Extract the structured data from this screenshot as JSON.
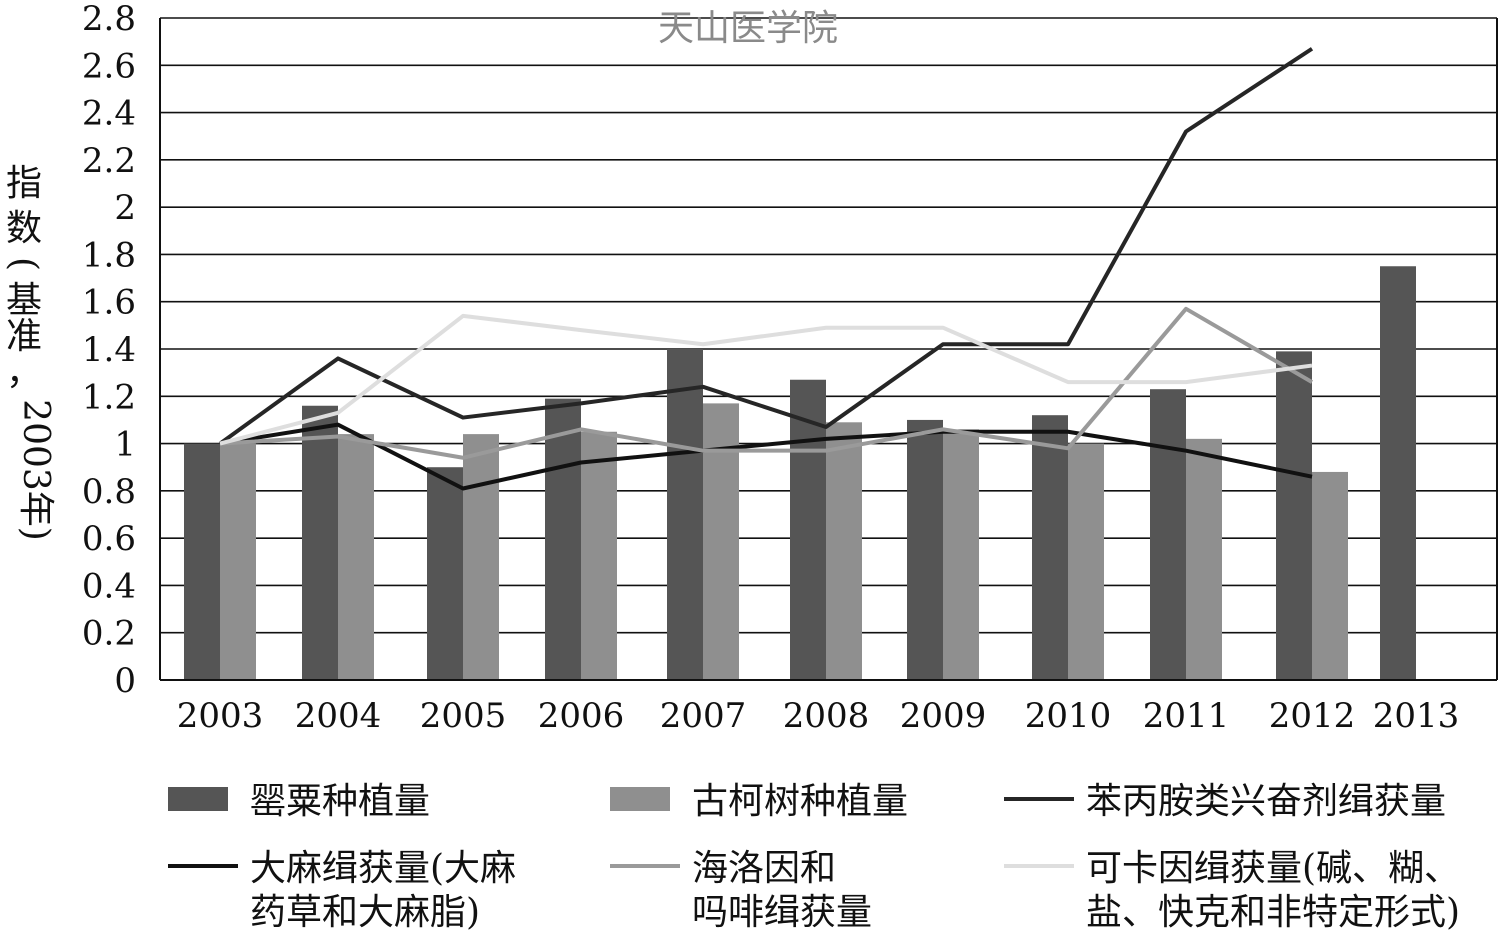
{
  "watermark": "天山医学院",
  "chart_data": {
    "type": "bar",
    "categories": [
      "2003",
      "2004",
      "2005",
      "2006",
      "2007",
      "2008",
      "2009",
      "2010",
      "2011",
      "2012",
      "2013"
    ],
    "ylabel_lines": [
      "指",
      "数(基准，",
      "2003年)"
    ],
    "ylim": [
      0,
      2.8
    ],
    "yticks": [
      "0",
      "0.2",
      "0.4",
      "0.6",
      "0.8",
      "1",
      "1.2",
      "1.4",
      "1.6",
      "1.8",
      "2",
      "2.2",
      "2.4",
      "2.6",
      "2.8"
    ],
    "grid": true,
    "legend_position": "bottom",
    "colors": {
      "poppy": "#555555",
      "coca": "#8f8f8f",
      "amphetamine": "#262626",
      "cannabis": "#111111",
      "heroin": "#9a9a9a",
      "cocaine": "#dedede",
      "grid": "#111111"
    },
    "bar_series": [
      {
        "key": "poppy",
        "values": [
          1.0,
          1.16,
          0.9,
          1.19,
          1.4,
          1.27,
          1.1,
          1.12,
          1.23,
          1.39,
          1.75
        ]
      },
      {
        "key": "coca",
        "values": [
          1.0,
          1.04,
          1.04,
          1.05,
          1.17,
          1.09,
          1.06,
          1.0,
          1.02,
          0.88,
          null
        ]
      }
    ],
    "line_series": [
      {
        "key": "amphetamine",
        "width": 4,
        "values": [
          1.0,
          1.36,
          1.11,
          1.17,
          1.24,
          1.07,
          1.42,
          1.42,
          2.32,
          2.67,
          null
        ]
      },
      {
        "key": "cannabis",
        "width": 4,
        "values": [
          1.0,
          1.08,
          0.81,
          0.92,
          0.97,
          1.02,
          1.05,
          1.05,
          0.97,
          0.86,
          null
        ]
      },
      {
        "key": "heroin",
        "width": 4,
        "values": [
          1.0,
          1.03,
          0.94,
          1.06,
          0.97,
          0.97,
          1.06,
          0.98,
          1.57,
          1.26,
          null
        ]
      },
      {
        "key": "cocaine",
        "width": 4,
        "values": [
          1.0,
          1.13,
          1.54,
          1.48,
          1.42,
          1.49,
          1.49,
          1.26,
          1.26,
          1.33,
          null
        ]
      }
    ],
    "legend": [
      {
        "key": "poppy",
        "kind": "bar",
        "lines": [
          "罂粟种植量"
        ]
      },
      {
        "key": "coca",
        "kind": "bar",
        "lines": [
          "古柯树种植量"
        ]
      },
      {
        "key": "amphetamine",
        "kind": "line",
        "lines": [
          "苯丙胺类兴奋剂缉获量"
        ]
      },
      {
        "key": "cannabis",
        "kind": "line",
        "lines": [
          "大麻缉获量(大麻",
          "药草和大麻脂)"
        ]
      },
      {
        "key": "heroin",
        "kind": "line",
        "lines": [
          "海洛因和",
          "吗啡缉获量"
        ]
      },
      {
        "key": "cocaine",
        "kind": "line",
        "lines": [
          "可卡因缉获量(碱、糊、",
          "盐、快克和非特定形式)"
        ]
      }
    ]
  }
}
